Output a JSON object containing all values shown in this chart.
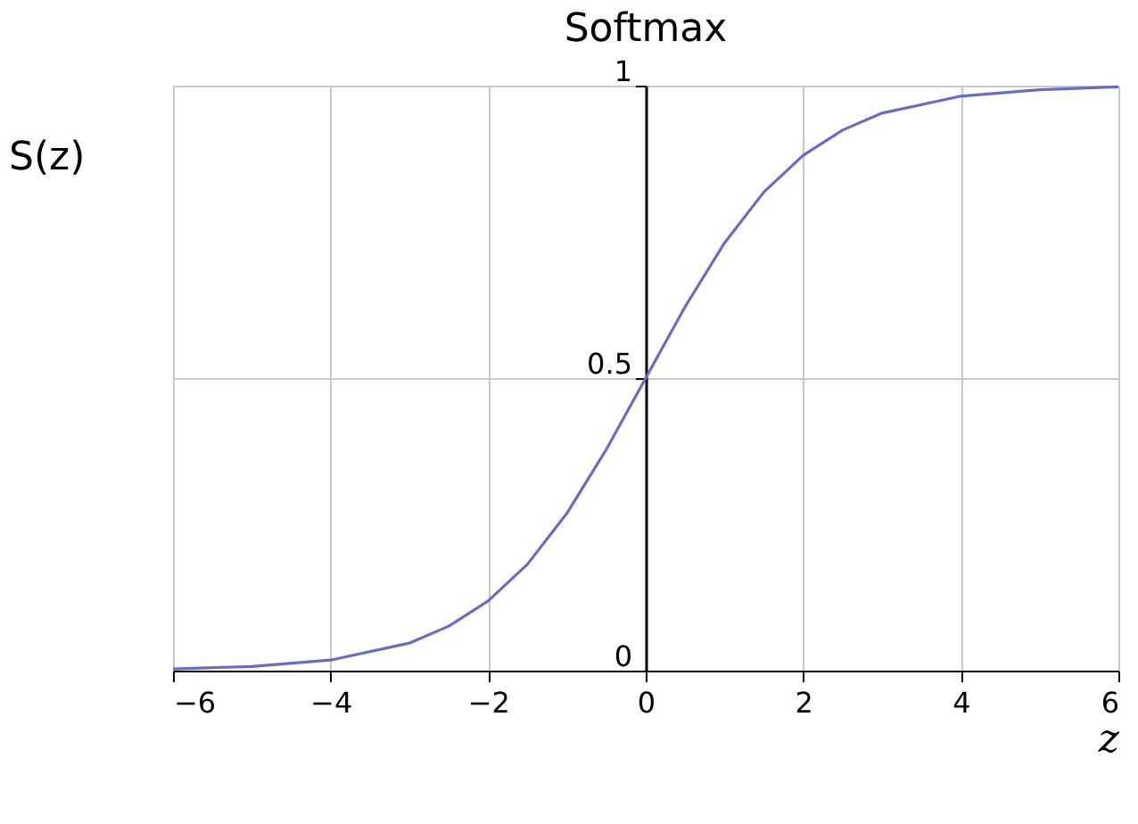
{
  "chart_data": {
    "type": "line",
    "title": "Softmax",
    "xlabel": "z",
    "ylabel": "S(z)",
    "x": [
      -6,
      -5,
      -4,
      -3,
      -2.5,
      -2,
      -1.5,
      -1,
      -0.5,
      0,
      0.5,
      1,
      1.5,
      2,
      2.5,
      3,
      4,
      5,
      6
    ],
    "series": [
      {
        "color": "#6a6acd",
        "values": [
          0.003,
          0.007,
          0.018,
          0.047,
          0.076,
          0.119,
          0.182,
          0.269,
          0.378,
          0.5,
          0.622,
          0.731,
          0.818,
          0.881,
          0.924,
          0.953,
          0.982,
          0.993,
          0.998
        ]
      }
    ],
    "xlim": [
      -6,
      6
    ],
    "ylim": [
      0,
      1
    ],
    "xticks": [
      {
        "value": -6,
        "label": "−6"
      },
      {
        "value": -4,
        "label": "−4"
      },
      {
        "value": -2,
        "label": "−2"
      },
      0,
      2,
      4,
      6
    ],
    "yticks": [
      0,
      0.5,
      1
    ],
    "grid": true,
    "marker": "none",
    "line_style": "solid",
    "legend": false
  }
}
